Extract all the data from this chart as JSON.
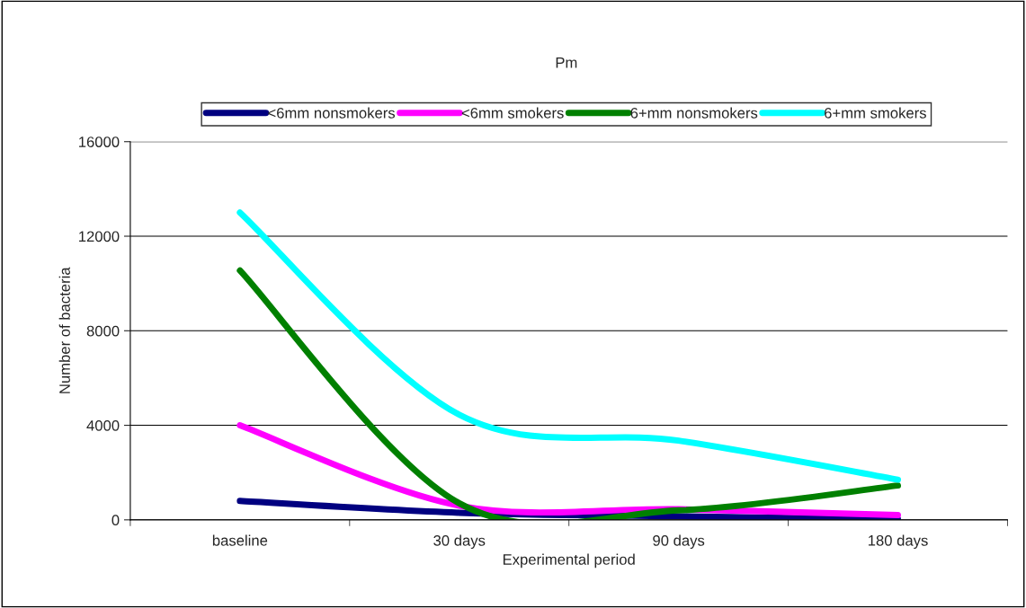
{
  "chart_data": {
    "type": "line",
    "title": "Pm",
    "xlabel": "Experimental period",
    "ylabel": "Number of bacteria",
    "categories": [
      "baseline",
      "30 days",
      "90 days",
      "180 days"
    ],
    "series": [
      {
        "name": "<6mm nonsmokers",
        "color": "#000080",
        "values": [
          800,
          300,
          150,
          30
        ]
      },
      {
        "name": "<6mm smokers",
        "color": "#ff00ff",
        "values": [
          4000,
          600,
          450,
          200
        ]
      },
      {
        "name": "6+mm nonsmokers",
        "color": "#008000",
        "values": [
          10550,
          700,
          400,
          1450
        ]
      },
      {
        "name": "6+mm smokers",
        "color": "#00ffff",
        "values": [
          13000,
          4450,
          3350,
          1700
        ]
      }
    ],
    "ylim": [
      0,
      16000
    ],
    "yticks": [
      0,
      4000,
      8000,
      12000,
      16000
    ],
    "grid": "y",
    "legend": "top",
    "marker": "none",
    "line_style": "solid"
  }
}
